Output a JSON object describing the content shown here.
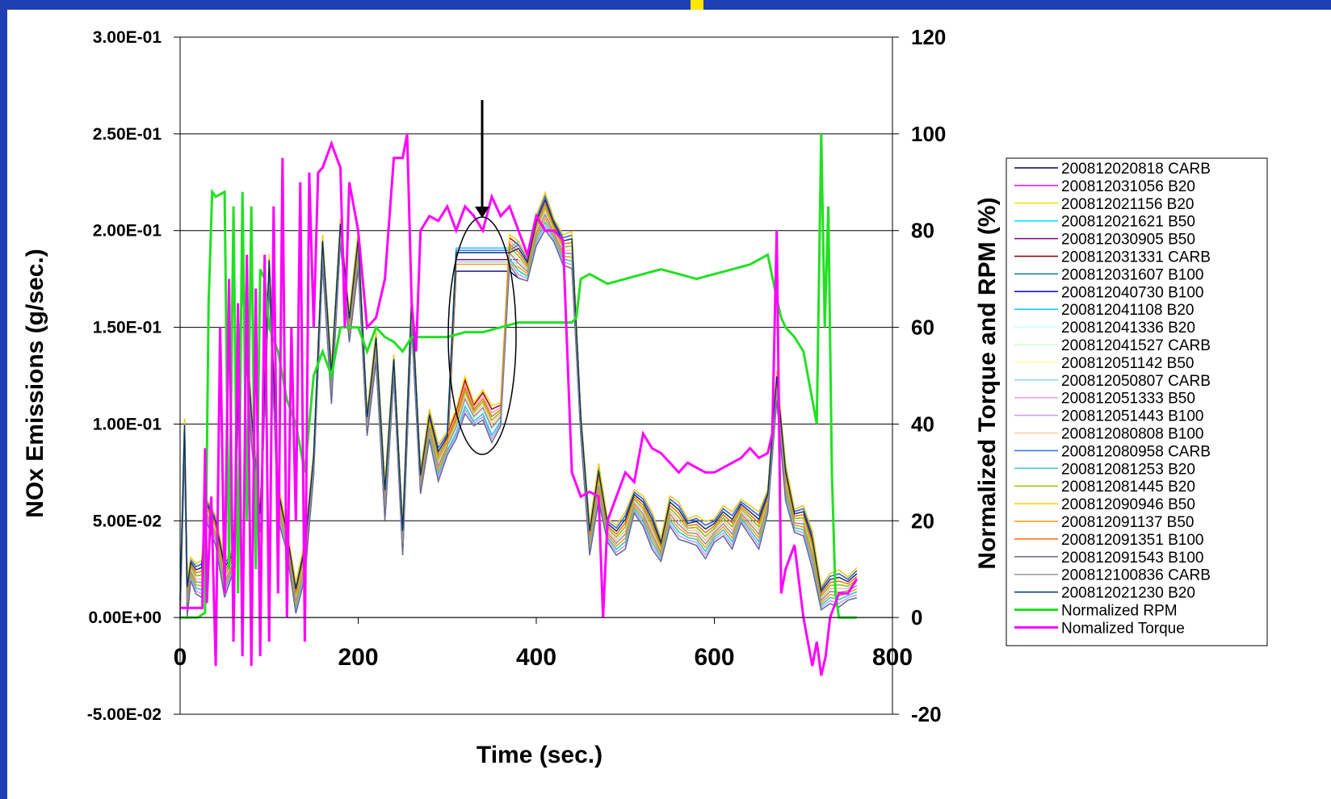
{
  "chart_data": {
    "type": "line",
    "xlabel": "Time (sec.)",
    "ylabel": "NOx Emissions (g/sec.)",
    "y2label": "Normalized Torque and RPM (%)",
    "xlim": [
      0,
      800
    ],
    "ylim": [
      -0.05,
      0.3
    ],
    "y2lim": [
      -20,
      120
    ],
    "x_ticks": [
      "0",
      "200",
      "400",
      "600",
      "800"
    ],
    "y_ticks": [
      "-5.00E-02",
      "0.00E+00",
      "5.00E-02",
      "1.00E-01",
      "1.50E-01",
      "2.00E-01",
      "2.50E-01",
      "3.00E-01"
    ],
    "y2_ticks": [
      "-20",
      "0",
      "20",
      "40",
      "60",
      "80",
      "100",
      "120"
    ],
    "grid": true,
    "legend_position": "right",
    "annotations": [
      "arrow pointing down to circled region",
      "ellipse around region near t=300-380 s"
    ],
    "nox_profile": {
      "x": [
        0,
        5,
        8,
        12,
        18,
        24,
        30,
        40,
        50,
        60,
        70,
        80,
        90,
        100,
        110,
        120,
        130,
        140,
        150,
        160,
        170,
        180,
        190,
        200,
        210,
        220,
        230,
        240,
        250,
        260,
        270,
        280,
        290,
        300,
        310,
        320,
        330,
        340,
        350,
        360,
        370,
        380,
        390,
        400,
        410,
        420,
        430,
        440,
        450,
        460,
        470,
        480,
        490,
        500,
        510,
        520,
        530,
        540,
        550,
        560,
        570,
        580,
        590,
        600,
        610,
        620,
        630,
        640,
        650,
        660,
        670,
        680,
        690,
        700,
        710,
        720,
        730,
        740,
        750,
        760
      ],
      "y": [
        0.005,
        0.095,
        0.01,
        0.025,
        0.02,
        0.02,
        0.055,
        0.045,
        0.02,
        0.03,
        0.18,
        0.1,
        0.05,
        0.18,
        0.06,
        0.04,
        0.01,
        0.03,
        0.08,
        0.19,
        0.12,
        0.2,
        0.15,
        0.19,
        0.1,
        0.14,
        0.06,
        0.13,
        0.04,
        0.16,
        0.07,
        0.1,
        0.08,
        0.09,
        0.1,
        0.115,
        0.105,
        0.11,
        0.1,
        0.105,
        0.19,
        0.185,
        0.18,
        0.2,
        0.21,
        0.2,
        0.19,
        0.19,
        0.1,
        0.04,
        0.07,
        0.045,
        0.04,
        0.045,
        0.06,
        0.055,
        0.045,
        0.035,
        0.055,
        0.05,
        0.045,
        0.045,
        0.04,
        0.045,
        0.05,
        0.045,
        0.055,
        0.05,
        0.045,
        0.06,
        0.12,
        0.07,
        0.05,
        0.05,
        0.035,
        0.01,
        0.015,
        0.015,
        0.015,
        0.018
      ]
    },
    "rpm": {
      "x": [
        0,
        10,
        20,
        28,
        32,
        36,
        40,
        50,
        55,
        60,
        65,
        70,
        75,
        80,
        85,
        90,
        95,
        100,
        110,
        120,
        130,
        140,
        150,
        160,
        170,
        180,
        190,
        200,
        210,
        220,
        230,
        240,
        250,
        260,
        270,
        280,
        290,
        300,
        320,
        340,
        360,
        380,
        400,
        420,
        440,
        445,
        450,
        460,
        480,
        500,
        520,
        540,
        560,
        580,
        600,
        620,
        640,
        660,
        670,
        675,
        680,
        690,
        700,
        710,
        715,
        720,
        724,
        728,
        732,
        736,
        740,
        748,
        760
      ],
      "y": [
        0,
        0,
        0,
        1,
        65,
        88,
        87,
        88,
        10,
        85,
        5,
        88,
        20,
        85,
        10,
        72,
        70,
        60,
        55,
        45,
        40,
        30,
        50,
        55,
        50,
        60,
        60,
        60,
        55,
        60,
        58,
        57,
        55,
        58,
        58,
        58,
        58,
        58,
        59,
        59,
        60,
        61,
        61,
        61,
        61,
        62,
        70,
        71,
        69,
        70,
        71,
        72,
        71,
        70,
        71,
        72,
        73,
        75,
        66,
        62,
        60,
        58,
        55,
        45,
        40,
        100,
        60,
        85,
        30,
        5,
        0,
        0,
        0
      ]
    },
    "torque": {
      "x": [
        0,
        5,
        10,
        15,
        20,
        25,
        28,
        30,
        35,
        40,
        45,
        50,
        55,
        60,
        65,
        70,
        75,
        80,
        85,
        90,
        95,
        100,
        105,
        110,
        115,
        120,
        125,
        130,
        135,
        140,
        145,
        150,
        155,
        160,
        170,
        180,
        185,
        190,
        200,
        210,
        220,
        230,
        240,
        250,
        255,
        260,
        265,
        270,
        280,
        290,
        300,
        310,
        320,
        330,
        340,
        350,
        360,
        370,
        380,
        390,
        400,
        410,
        420,
        430,
        440,
        450,
        460,
        470,
        475,
        480,
        490,
        500,
        510,
        520,
        530,
        540,
        550,
        560,
        570,
        580,
        590,
        600,
        610,
        620,
        630,
        640,
        650,
        660,
        665,
        670,
        675,
        680,
        690,
        700,
        710,
        715,
        720,
        725,
        730,
        740,
        750,
        760
      ],
      "y": [
        2,
        2,
        2,
        2,
        2,
        2,
        35,
        3,
        25,
        -10,
        60,
        5,
        70,
        -5,
        65,
        -8,
        75,
        -10,
        68,
        -8,
        75,
        -5,
        85,
        5,
        95,
        0,
        60,
        20,
        90,
        -5,
        92,
        60,
        92,
        93,
        98,
        93,
        60,
        90,
        80,
        60,
        62,
        70,
        95,
        95,
        100,
        65,
        55,
        80,
        83,
        82,
        85,
        80,
        85,
        83,
        80,
        87,
        83,
        85,
        80,
        75,
        83,
        80,
        80,
        78,
        30,
        25,
        26,
        25,
        0,
        20,
        25,
        30,
        28,
        38,
        35,
        34,
        32,
        30,
        32,
        31,
        30,
        30,
        31,
        32,
        33,
        35,
        33,
        34,
        38,
        80,
        5,
        10,
        15,
        0,
        -10,
        -5,
        -12,
        -8,
        0,
        5,
        5,
        8
      ]
    }
  },
  "legend": {
    "items": [
      {
        "label": "200812020818 CARB",
        "color": "#000060"
      },
      {
        "label": "200812031056 B20",
        "color": "#ff00ff"
      },
      {
        "label": "200812021156 B20",
        "color": "#e8e800"
      },
      {
        "label": "200812021621 B50",
        "color": "#00e0ff"
      },
      {
        "label": "200812030905 B50",
        "color": "#800080"
      },
      {
        "label": "200812031331 CARB",
        "color": "#800000"
      },
      {
        "label": "200812031607 B100",
        "color": "#008080"
      },
      {
        "label": "200812040730 B100",
        "color": "#0000ff"
      },
      {
        "label": "200812041108 B20",
        "color": "#00ccff"
      },
      {
        "label": "200812041336 B20",
        "color": "#ccffff"
      },
      {
        "label": "200812041527 CARB",
        "color": "#ccffcc"
      },
      {
        "label": "200812051142 B50",
        "color": "#ffff99"
      },
      {
        "label": "200812050807 CARB",
        "color": "#99ccff"
      },
      {
        "label": "200812051333 B50",
        "color": "#ff99cc"
      },
      {
        "label": "200812051443 B100",
        "color": "#cc99ff"
      },
      {
        "label": "200812080808 B100",
        "color": "#ffcc99"
      },
      {
        "label": "200812080958 CARB",
        "color": "#3366ff"
      },
      {
        "label": "200812081253 B20",
        "color": "#33cccc"
      },
      {
        "label": "200812081445 B20",
        "color": "#99cc00"
      },
      {
        "label": "200812090946 B50",
        "color": "#ffcc00"
      },
      {
        "label": "200812091137 B50",
        "color": "#ff9900"
      },
      {
        "label": "200812091351 B100",
        "color": "#ff6600"
      },
      {
        "label": "200812091543 B100",
        "color": "#666699"
      },
      {
        "label": "200812100836 CARB",
        "color": "#969696"
      },
      {
        "label": "200812021230 B20",
        "color": "#003366"
      },
      {
        "label": "Normalized RPM",
        "color": "#22e022",
        "thick": true
      },
      {
        "label": "Nomalized Torque",
        "color": "#ff00ff",
        "thick": true
      }
    ]
  }
}
